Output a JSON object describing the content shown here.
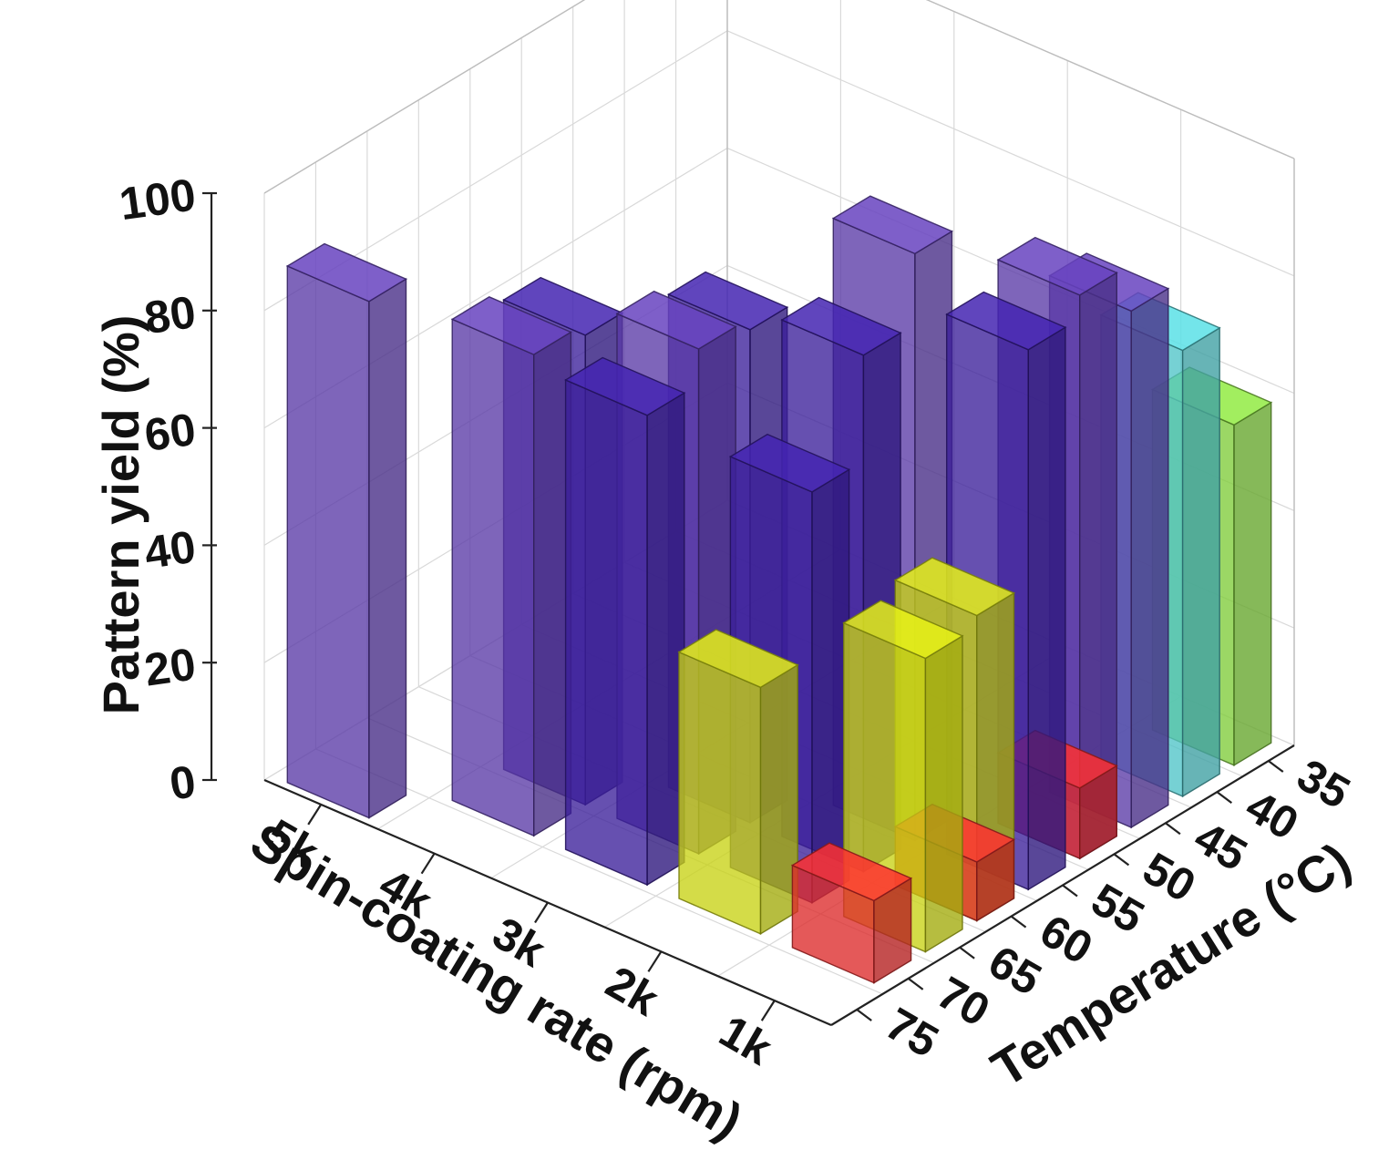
{
  "chart_data": {
    "type": "bar3d",
    "title": "",
    "zlabel": "Pattern yield (%)",
    "xlabel": "Spin-coating rate (rpm)",
    "ylabel": "Temperature (°C)",
    "spin_rates": [
      "5k",
      "4k",
      "3k",
      "2k",
      "1k"
    ],
    "temperatures": [
      "35",
      "40",
      "45",
      "50",
      "55",
      "60",
      "65",
      "70",
      "75"
    ],
    "zticks": [
      "0",
      "20",
      "40",
      "60",
      "80",
      "100"
    ],
    "zlim": [
      0,
      100
    ],
    "grid": true,
    "colors": {
      "purple": "#5a3aa6",
      "indigo": "#3b1f9a",
      "yellow": "#c8d214",
      "cyan": "#4fc4c8",
      "green": "#7fcc3a",
      "red": "#dd2a2a"
    },
    "bars": [
      {
        "rate": "5k",
        "temp": "75",
        "value": 88,
        "color": "purple"
      },
      {
        "rate": "4k",
        "temp": "70",
        "value": 82,
        "color": "purple"
      },
      {
        "rate": "4k",
        "temp": "65",
        "value": 80,
        "color": "indigo"
      },
      {
        "rate": "3k",
        "temp": "65",
        "value": 86,
        "color": "purple"
      },
      {
        "rate": "3k",
        "temp": "60",
        "value": 84,
        "color": "indigo"
      },
      {
        "rate": "3k",
        "temp": "70",
        "value": 80,
        "color": "indigo"
      },
      {
        "rate": "2k",
        "temp": "55",
        "value": 100,
        "color": "purple"
      },
      {
        "rate": "2k",
        "temp": "60",
        "value": 88,
        "color": "indigo"
      },
      {
        "rate": "2k",
        "temp": "65",
        "value": 70,
        "color": "indigo"
      },
      {
        "rate": "2k",
        "temp": "70",
        "value": 42,
        "color": "yellow"
      },
      {
        "rate": "1k",
        "temp": "50",
        "value": 96,
        "color": "purple"
      },
      {
        "rate": "1k",
        "temp": "55",
        "value": 92,
        "color": "indigo"
      },
      {
        "rate": "1k",
        "temp": "60",
        "value": 52,
        "color": "yellow"
      },
      {
        "rate": "1k",
        "temp": "65",
        "value": 50,
        "color": "yellow"
      },
      {
        "rate": "1k",
        "temp": "45",
        "value": 88,
        "color": "purple"
      },
      {
        "rate": "1k",
        "temp": "40",
        "value": 76,
        "color": "cyan"
      },
      {
        "rate": "1k",
        "temp": "35",
        "value": 58,
        "color": "green"
      },
      {
        "rate": "1k",
        "temp": "50",
        "value": 12,
        "color": "red"
      },
      {
        "rate": "1k",
        "temp": "60",
        "value": 10,
        "color": "red"
      },
      {
        "rate": "1k",
        "temp": "70",
        "value": 14,
        "color": "red"
      }
    ]
  }
}
